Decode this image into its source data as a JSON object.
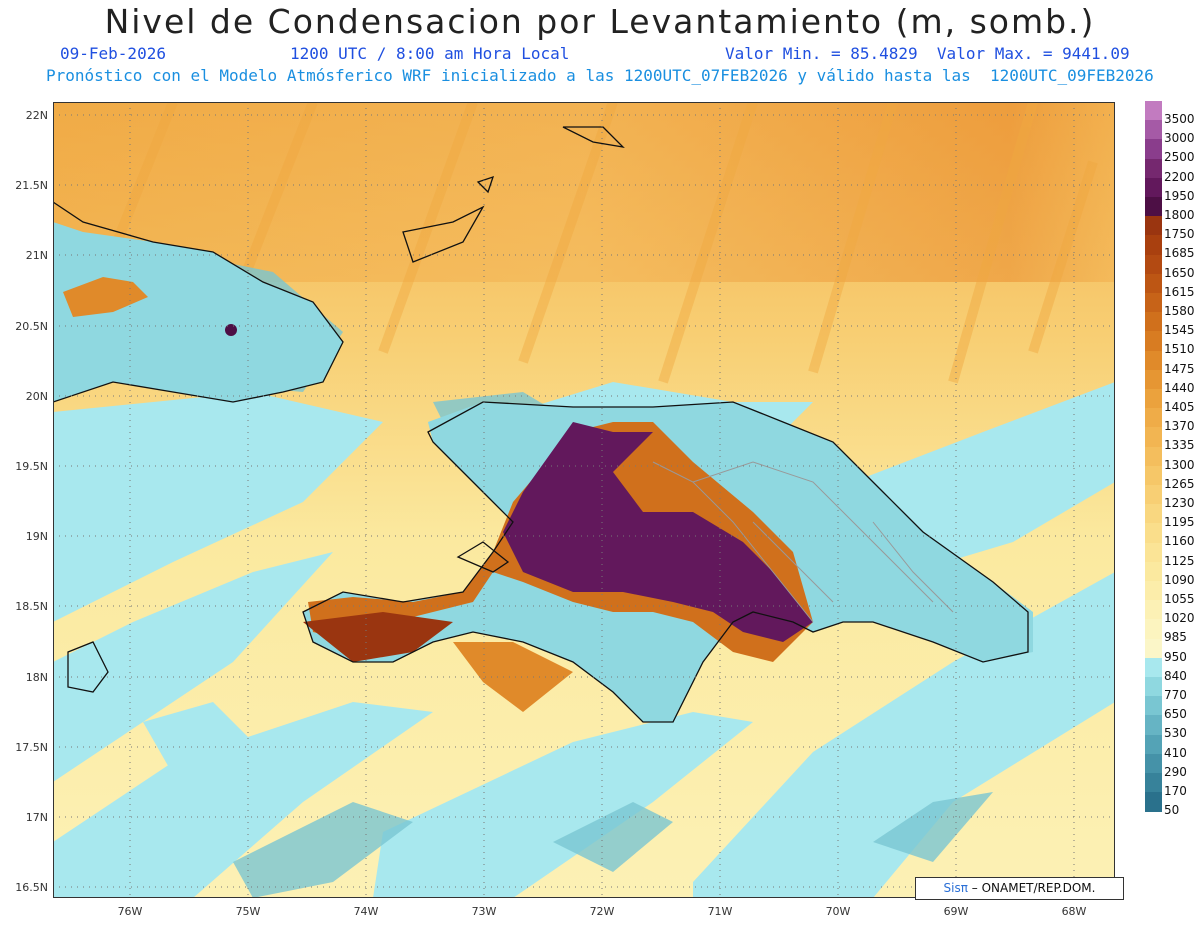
{
  "header": {
    "title": "Nivel de Condensacion por Levantamiento (m, somb.)",
    "date": "09-Feb-2026",
    "time": "1200 UTC / 8:00 am Hora Local",
    "minmax": "Valor Min. = 85.4829  Valor Max. = 9441.09",
    "model_line": "Pronóstico con el Modelo Atmósferico WRF inicializado a las 1200UTC_07FEB2026 y válido hasta las  1200UTC_09FEB2026"
  },
  "axes": {
    "lat_labels": [
      "22N",
      "21.5N",
      "21N",
      "20.5N",
      "20N",
      "19.5N",
      "19N",
      "18.5N",
      "18N",
      "17.5N",
      "17N",
      "16.5N"
    ],
    "lon_labels": [
      "76W",
      "75W",
      "74W",
      "73W",
      "72W",
      "71W",
      "70W",
      "69W",
      "68W"
    ]
  },
  "colorbar": {
    "labels": [
      "3500",
      "3000",
      "2500",
      "2200",
      "1950",
      "1800",
      "1750",
      "1685",
      "1650",
      "1615",
      "1580",
      "1545",
      "1510",
      "1475",
      "1440",
      "1405",
      "1370",
      "1335",
      "1300",
      "1265",
      "1230",
      "1195",
      "1160",
      "1125",
      "1090",
      "1055",
      "1020",
      "985",
      "950",
      "840",
      "770",
      "650",
      "530",
      "410",
      "290",
      "170",
      "50"
    ],
    "colors": [
      "#c27bc0",
      "#a55aa6",
      "#8a3d8c",
      "#75286f",
      "#62185c",
      "#4d0f45",
      "#9a3510",
      "#a9400f",
      "#b34a12",
      "#bd5614",
      "#c76318",
      "#d0701c",
      "#d87c22",
      "#e08a2a",
      "#e69633",
      "#eba23d",
      "#efac48",
      "#f2b552",
      "#f4be5d",
      "#f6c768",
      "#f8cf74",
      "#f9d780",
      "#fade8b",
      "#fbe496",
      "#fbe99f",
      "#fcedaa",
      "#fcf1b5",
      "#fcf4bf",
      "#fbf6c8",
      "#a8e8ee",
      "#8fd8e0",
      "#79c6d2",
      "#66b4c4",
      "#54a3b6",
      "#4592a8",
      "#37829a",
      "#2a718c"
    ]
  },
  "credit": {
    "sis": "Sisπ",
    "rest": "– ONAMET/REP.DOM."
  }
}
